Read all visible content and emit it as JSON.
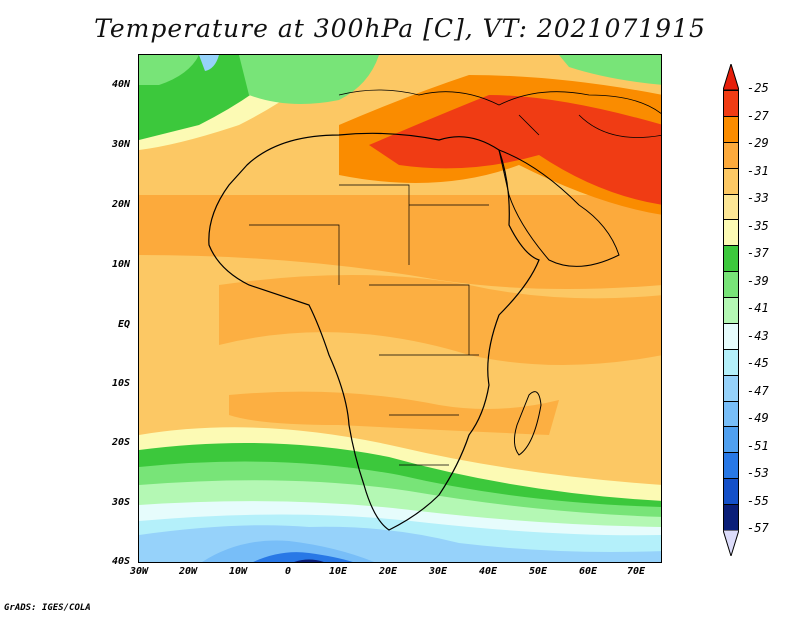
{
  "title": "Temperature at 300hPa [C], VT: 2021071915",
  "credit": "GrADS: IGES/COLA",
  "axes": {
    "y_ticks": [
      "40N",
      "30N",
      "20N",
      "10N",
      "EQ",
      "10S",
      "20S",
      "30S",
      "40S"
    ],
    "x_ticks": [
      "30W",
      "20W",
      "10W",
      "0",
      "10E",
      "20E",
      "30E",
      "40E",
      "50E",
      "60E",
      "70E"
    ]
  },
  "colorbar": {
    "labels": [
      "-25",
      "-27",
      "-29",
      "-31",
      "-33",
      "-35",
      "-37",
      "-39",
      "-41",
      "-43",
      "-45",
      "-47",
      "-49",
      "-51",
      "-53",
      "-55",
      "-57"
    ],
    "colors": [
      "#f03c14",
      "#fa8c00",
      "#fcaa3c",
      "#fcc864",
      "#fce696",
      "#fcfab4",
      "#3cc83c",
      "#78e478",
      "#b4f8b4",
      "#e6fcfc",
      "#b4f0fa",
      "#96d2fa",
      "#78bef8",
      "#50a0f0",
      "#2878e6",
      "#1450c8",
      "#0a1e78"
    ],
    "top_arrow_color": "#e61e0a",
    "bottom_arrow_color": "#dcdcfa"
  }
}
